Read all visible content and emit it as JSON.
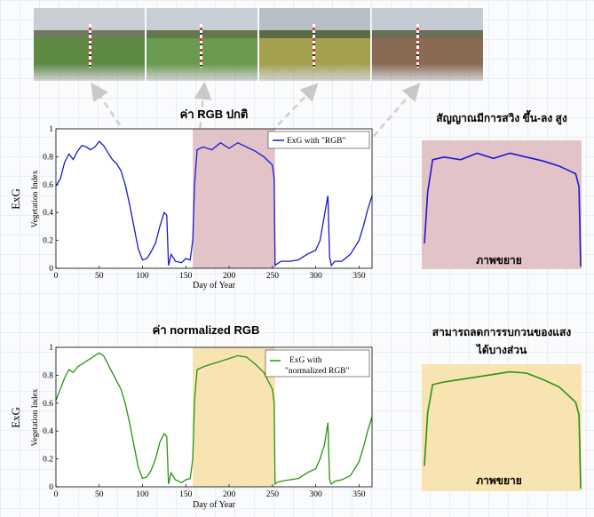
{
  "photos": [
    {
      "sky": "#c9ced3",
      "field": "#5e8a44",
      "trees": "#6f7b5c"
    },
    {
      "sky": "#c7cfd6",
      "field": "#6a9a4e",
      "trees": "#64774f"
    },
    {
      "sky": "#b8c0c7",
      "field": "#a3a14e",
      "trees": "#5c6a45"
    },
    {
      "sky": "#c4cbd3",
      "field": "#8a6a55",
      "trees": "#6d6e58"
    }
  ],
  "top_chart": {
    "title": "ค่า RGB ปกติ",
    "ylabel_outer": "ExG",
    "ylabel_inner": "Vegetation Index",
    "xlabel": "Day of Year",
    "legend": "ExG with \"RGB\"",
    "zoom_title": "สัญญาณมีการสวิง ขึ้น-ลง สูง",
    "zoom_label": "ภาพขยาย"
  },
  "bottom_chart": {
    "title": "ค่า normalized RGB",
    "ylabel_outer": "ExG",
    "ylabel_inner": "Vegetation Index",
    "xlabel": "Day of Year",
    "legend_line1": "ExG with",
    "legend_line2": "\"normalized RGB\"",
    "zoom_title_line1": "สามารถลดการรบกวนของแสง",
    "zoom_title_line2": "ได้บางส่วน",
    "zoom_label": "ภาพขยาย"
  },
  "colors": {
    "rgb_series": "#1a18d4",
    "norm_series": "#279410",
    "rgb_highlight": "#e2c4c8",
    "norm_highlight": "#f7e4b2"
  },
  "chart_data": [
    {
      "type": "line",
      "title": "ค่า RGB ปกติ",
      "xlabel": "Day of Year",
      "ylabel": "Vegetation Index",
      "xlim": [
        0,
        365
      ],
      "ylim": [
        0,
        1
      ],
      "xticks": [
        0,
        50,
        100,
        150,
        200,
        250,
        300,
        350
      ],
      "yticks": [
        0,
        0.2,
        0.4,
        0.6,
        0.8,
        1
      ],
      "highlight_range": [
        158,
        253
      ],
      "series": [
        {
          "name": "ExG with \"RGB\"",
          "x": [
            0,
            5,
            10,
            15,
            20,
            25,
            30,
            35,
            40,
            45,
            50,
            55,
            60,
            65,
            70,
            75,
            80,
            85,
            90,
            95,
            100,
            105,
            110,
            115,
            120,
            125,
            128,
            130,
            133,
            138,
            145,
            150,
            155,
            158,
            160,
            163,
            170,
            180,
            190,
            200,
            210,
            220,
            230,
            240,
            245,
            250,
            252,
            253,
            255,
            260,
            270,
            280,
            290,
            300,
            305,
            310,
            314,
            316,
            318,
            322,
            330,
            340,
            350,
            355,
            360,
            365
          ],
          "y": [
            0.59,
            0.64,
            0.76,
            0.82,
            0.78,
            0.84,
            0.88,
            0.87,
            0.85,
            0.87,
            0.91,
            0.88,
            0.83,
            0.78,
            0.75,
            0.7,
            0.6,
            0.46,
            0.3,
            0.14,
            0.06,
            0.07,
            0.12,
            0.18,
            0.3,
            0.4,
            0.38,
            0.02,
            0.1,
            0.05,
            0.04,
            0.07,
            0.06,
            0.2,
            0.6,
            0.85,
            0.87,
            0.85,
            0.9,
            0.86,
            0.9,
            0.87,
            0.84,
            0.8,
            0.77,
            0.74,
            0.64,
            0.02,
            0.03,
            0.05,
            0.05,
            0.06,
            0.1,
            0.13,
            0.2,
            0.38,
            0.52,
            0.08,
            0.02,
            0.05,
            0.05,
            0.1,
            0.2,
            0.3,
            0.42,
            0.52
          ]
        }
      ]
    },
    {
      "type": "line",
      "title": "ค่า normalized RGB",
      "xlabel": "Day of Year",
      "ylabel": "Vegetation Index",
      "xlim": [
        0,
        365
      ],
      "ylim": [
        0,
        1
      ],
      "xticks": [
        0,
        50,
        100,
        150,
        200,
        250,
        300,
        350
      ],
      "yticks": [
        0,
        0.2,
        0.4,
        0.6,
        0.8,
        1
      ],
      "highlight_range": [
        158,
        253
      ],
      "series": [
        {
          "name": "ExG with \"normalized RGB\"",
          "x": [
            0,
            5,
            10,
            15,
            20,
            25,
            30,
            35,
            40,
            45,
            50,
            55,
            60,
            65,
            70,
            75,
            80,
            85,
            90,
            95,
            100,
            105,
            110,
            115,
            120,
            125,
            128,
            130,
            133,
            138,
            145,
            150,
            155,
            158,
            160,
            163,
            170,
            180,
            190,
            200,
            210,
            220,
            230,
            240,
            245,
            250,
            252,
            253,
            255,
            260,
            270,
            280,
            290,
            300,
            305,
            310,
            314,
            316,
            318,
            322,
            330,
            340,
            350,
            355,
            360,
            365
          ],
          "y": [
            0.62,
            0.7,
            0.78,
            0.84,
            0.82,
            0.86,
            0.88,
            0.9,
            0.92,
            0.94,
            0.96,
            0.94,
            0.88,
            0.82,
            0.76,
            0.7,
            0.6,
            0.46,
            0.3,
            0.14,
            0.06,
            0.07,
            0.12,
            0.2,
            0.32,
            0.38,
            0.36,
            0.02,
            0.1,
            0.05,
            0.03,
            0.05,
            0.06,
            0.2,
            0.62,
            0.84,
            0.86,
            0.88,
            0.9,
            0.92,
            0.94,
            0.93,
            0.88,
            0.82,
            0.76,
            0.7,
            0.6,
            0.02,
            0.03,
            0.04,
            0.05,
            0.06,
            0.1,
            0.13,
            0.2,
            0.3,
            0.46,
            0.05,
            0.02,
            0.04,
            0.05,
            0.08,
            0.18,
            0.28,
            0.4,
            0.5
          ]
        }
      ]
    }
  ]
}
